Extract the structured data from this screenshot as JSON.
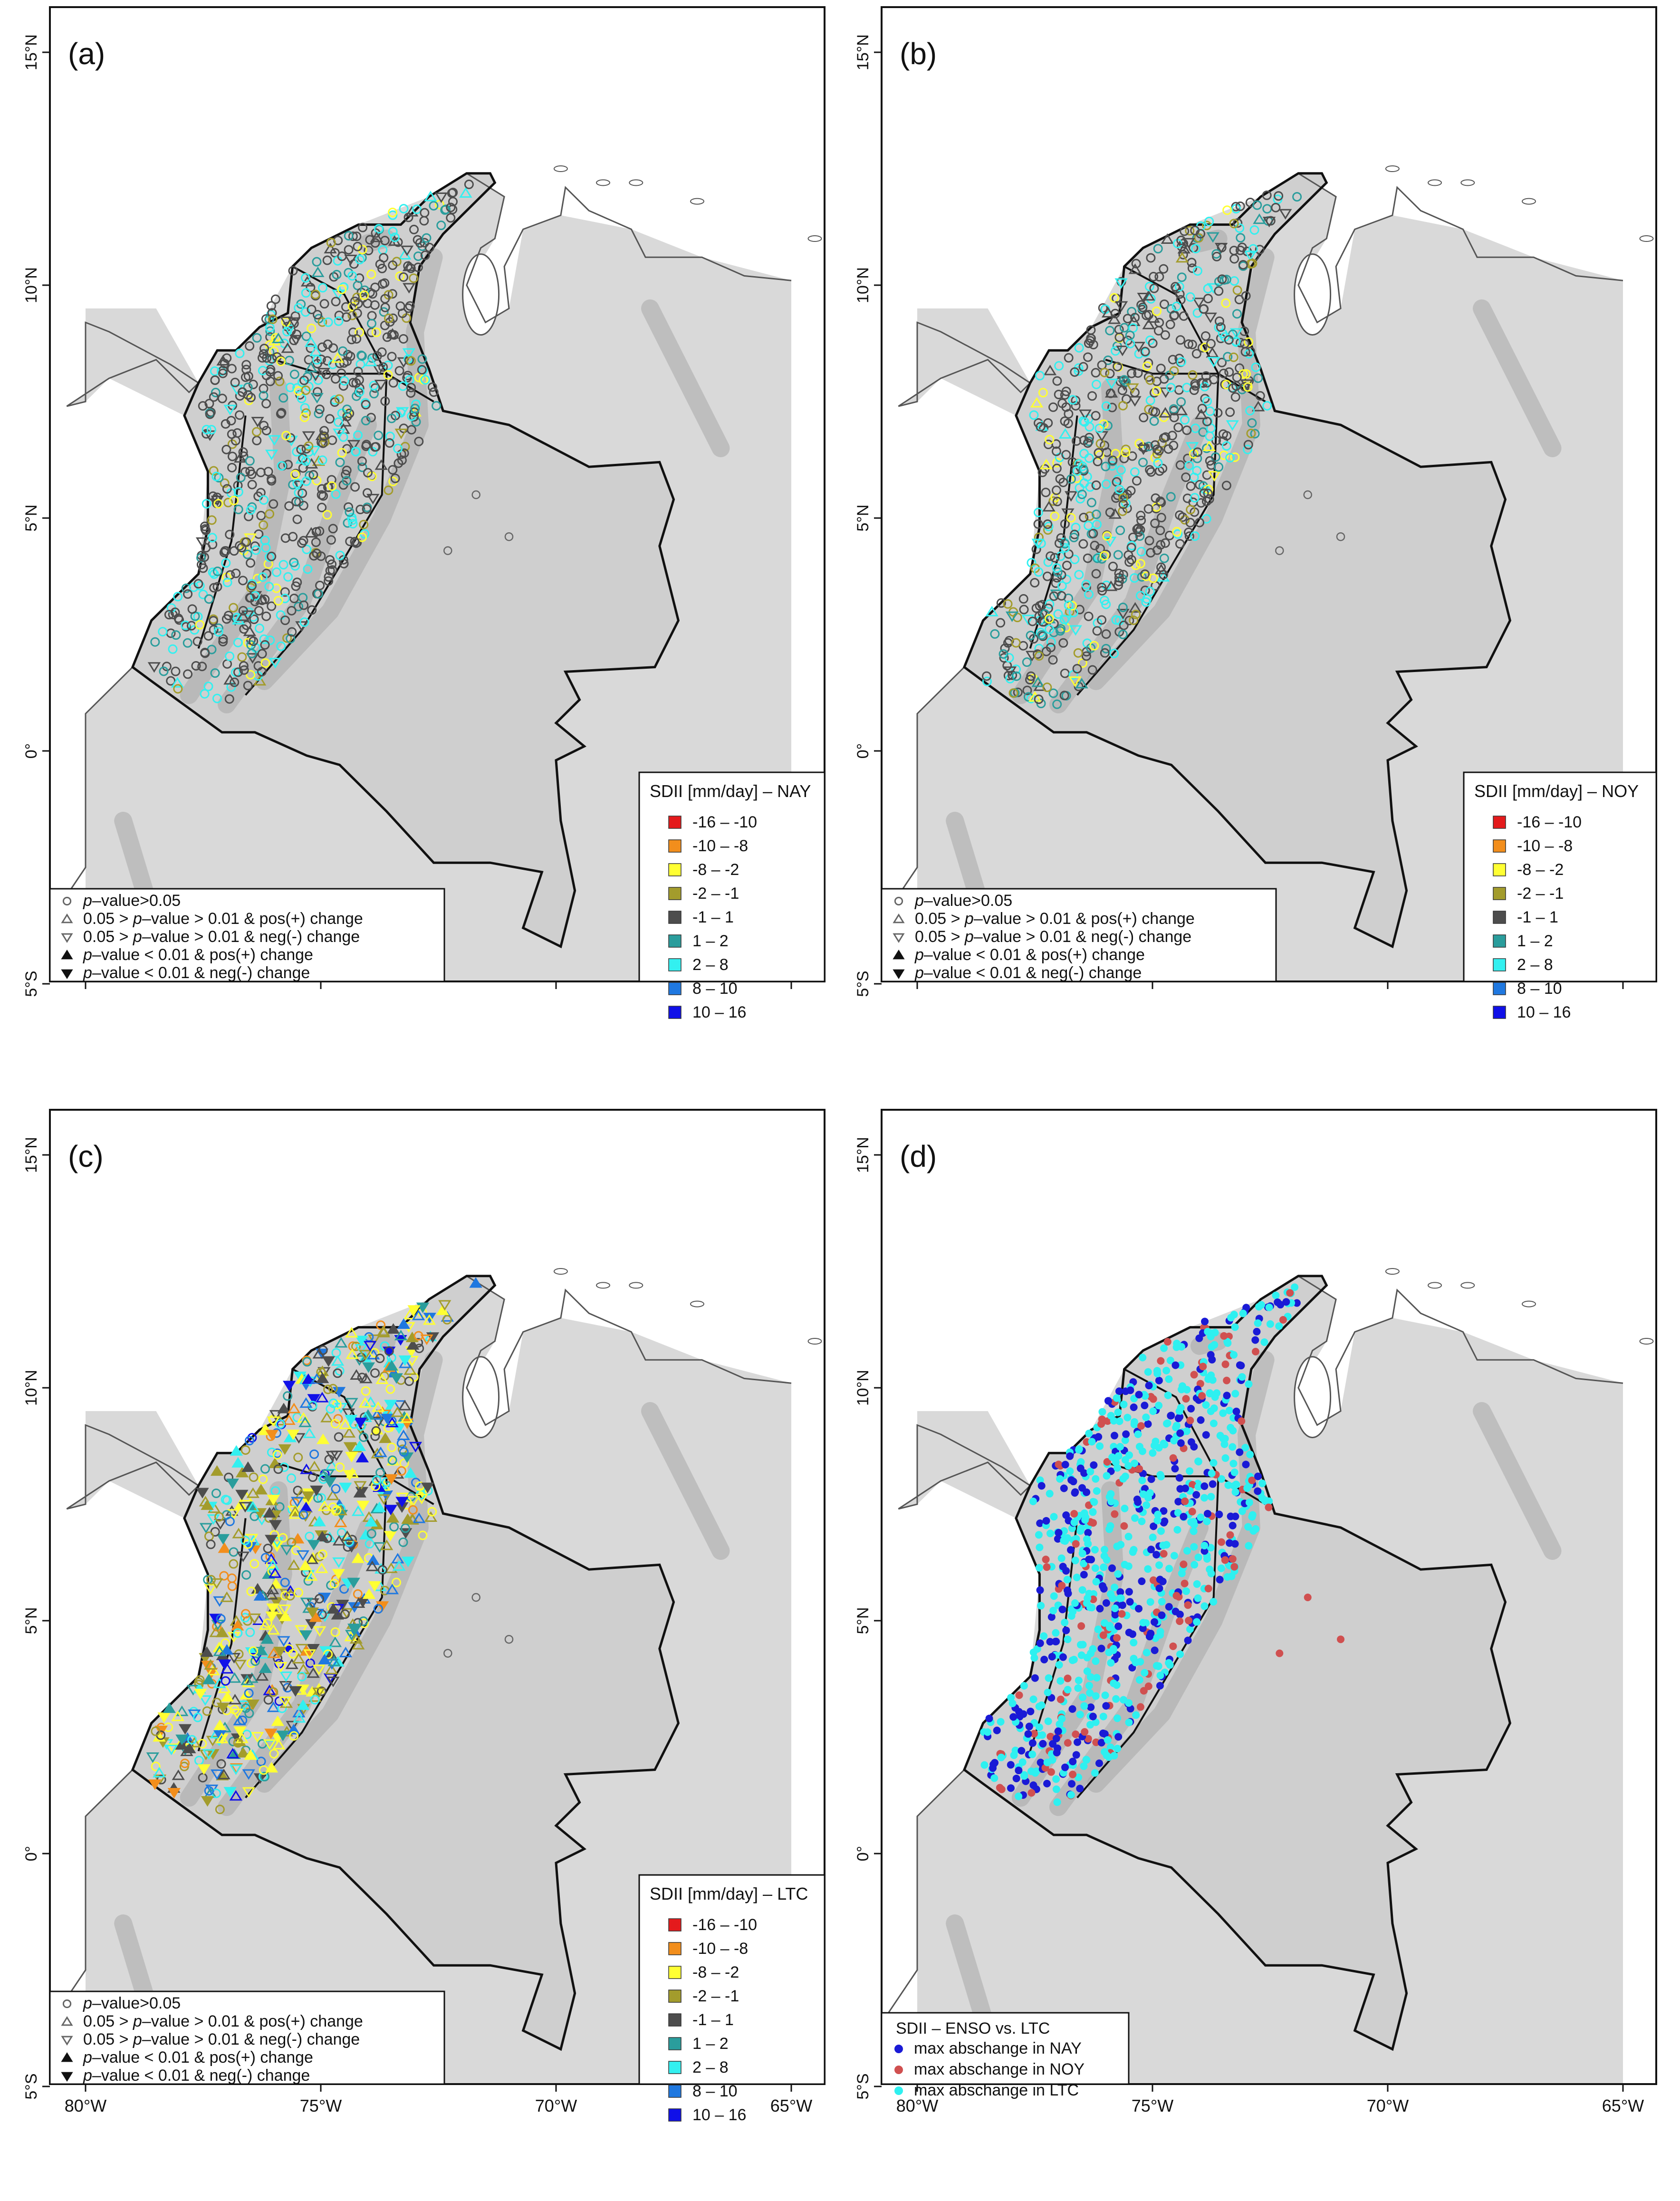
{
  "panels": [
    {
      "letter": "(a)",
      "legend_title": "SDII [mm/day] – NAY",
      "kind": "pvalue",
      "season": "NAY"
    },
    {
      "letter": "(b)",
      "legend_title": "SDII [mm/day] – NOY",
      "kind": "pvalue",
      "season": "NOY"
    },
    {
      "letter": "(c)",
      "legend_title": "SDII [mm/day] – LTC",
      "kind": "pvalue",
      "season": "LTC"
    },
    {
      "letter": "(d)",
      "legend_title": "SDII – ENSO vs. LTC",
      "kind": "enso",
      "season": "ENSO"
    }
  ],
  "lat_ticks": [
    "15°N",
    "10°N",
    "5°N",
    "0°",
    "5°S"
  ],
  "lon_ticks": [
    "80°W",
    "75°W",
    "70°W",
    "65°W"
  ],
  "color_classes": [
    {
      "label": "-16 – -10",
      "color": "#e41a1c"
    },
    {
      "label": "-10 – -8",
      "color": "#f28e1c"
    },
    {
      "label": "-8 – -2",
      "color": "#ffff33"
    },
    {
      "label": "-2 – -1",
      "color": "#a39c2c"
    },
    {
      "label": "-1 – 1",
      "color": "#4d4d4d"
    },
    {
      "label": "1 – 2",
      "color": "#2a9d9c"
    },
    {
      "label": "2 – 8",
      "color": "#33f0f0"
    },
    {
      "label": "8 – 10",
      "color": "#1f78e0"
    },
    {
      "label": "10 – 16",
      "color": "#1010e8"
    }
  ],
  "pvalue_legend": [
    {
      "prefix": "",
      "italic": "p",
      "suffix": "–value>0.05",
      "symbol": "circle-open"
    },
    {
      "prefix": "0.05 > ",
      "italic": "p",
      "suffix": "–value > 0.01 & pos(+) change",
      "symbol": "triangle-up-open"
    },
    {
      "prefix": "0.05 > ",
      "italic": "p",
      "suffix": "–value > 0.01 & neg(-) change",
      "symbol": "triangle-down-open"
    },
    {
      "prefix": "",
      "italic": "p",
      "suffix": "–value < 0.01 & pos(+) change",
      "symbol": "triangle-up-filled"
    },
    {
      "prefix": "",
      "italic": "p",
      "suffix": "–value < 0.01 & neg(-) change",
      "symbol": "triangle-down-filled"
    }
  ],
  "enso_legend": [
    {
      "label": "max abschange in NAY",
      "color": "#1a1ad6"
    },
    {
      "label": "max abschange in NOY",
      "color": "#d05050"
    },
    {
      "label": "max abschange in LTC",
      "color": "#2ef0f0"
    }
  ],
  "colors": {
    "land": "#d9d9d9",
    "sea": "#ffffff",
    "border": "#111111",
    "coast": "#555555",
    "relief": "#a8a8a8"
  }
}
